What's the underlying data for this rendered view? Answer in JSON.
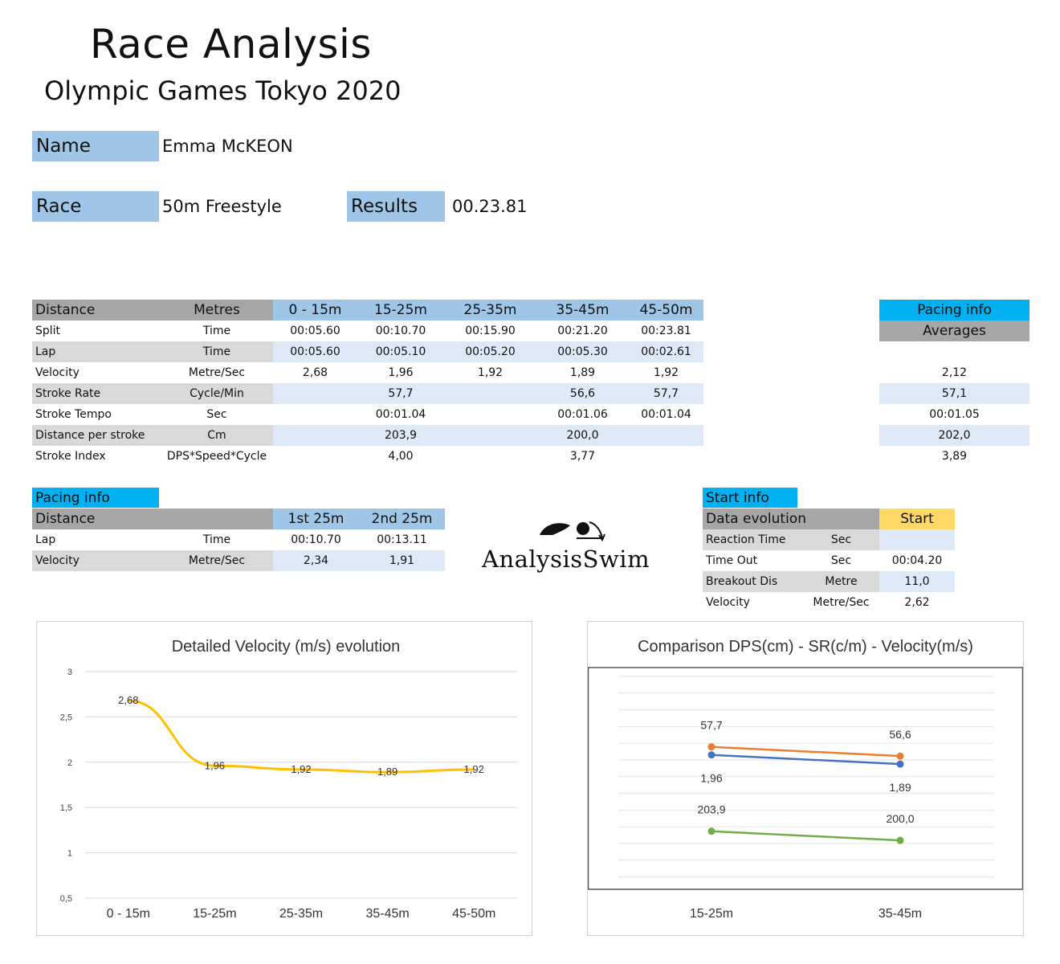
{
  "header": {
    "title": "Race Analysis",
    "subtitle": "Olympic Games Tokyo 2020"
  },
  "athlete": {
    "name_label": "Name",
    "name_value": "Emma McKEON",
    "race_label": "Race",
    "race_value": "50m Freestyle",
    "results_label": "Results",
    "results_value": "00.23.81"
  },
  "main_table": {
    "headers": [
      "Distance",
      "Metres",
      "0 - 15m",
      "15-25m",
      "25-35m",
      "35-45m",
      "45-50m"
    ],
    "rows": [
      {
        "label": "Split",
        "unit": "Time",
        "values": [
          "00:05.60",
          "00:10.70",
          "00:15.90",
          "00:21.20",
          "00:23.81"
        ]
      },
      {
        "label": "Lap",
        "unit": "Time",
        "values": [
          "00:05.60",
          "00:05.10",
          "00:05.20",
          "00:05.30",
          "00:02.61"
        ]
      },
      {
        "label": "Velocity",
        "unit": "Metre/Sec",
        "values": [
          "2,68",
          "1,96",
          "1,92",
          "1,89",
          "1,92"
        ]
      },
      {
        "label": "Stroke Rate",
        "unit": "Cycle/Min",
        "values": [
          "",
          "57,7",
          "",
          "56,6",
          "57,7"
        ]
      },
      {
        "label": "Stroke Tempo",
        "unit": "Sec",
        "values": [
          "",
          "00:01.04",
          "",
          "00:01.06",
          "00:01.04"
        ]
      },
      {
        "label": "Distance per stroke",
        "unit": "Cm",
        "values": [
          "",
          "203,9",
          "",
          "200,0",
          ""
        ]
      },
      {
        "label": "Stroke Index",
        "unit": "DPS*Speed*Cycle",
        "values": [
          "",
          "4,00",
          "",
          "3,77",
          ""
        ]
      }
    ]
  },
  "averages": {
    "title": "Pacing info",
    "subtitle": "Averages",
    "values": [
      "",
      "",
      "2,12",
      "57,1",
      "00:01.05",
      "202,0",
      "3,89"
    ]
  },
  "pacing": {
    "title": "Pacing info",
    "headers": [
      "Distance",
      "",
      "1st 25m",
      "2nd 25m"
    ],
    "rows": [
      {
        "label": "Lap",
        "unit": "Time",
        "values": [
          "00:10.70",
          "00:13.11"
        ]
      },
      {
        "label": "Velocity",
        "unit": "Metre/Sec",
        "values": [
          "2,34",
          "1,91"
        ]
      }
    ]
  },
  "logo": {
    "text": "AnalysisSwim"
  },
  "start_info": {
    "title": "Start info",
    "header_label": "Data evolution",
    "header_value": "Start",
    "rows": [
      {
        "label": "Reaction Time",
        "unit": "Sec",
        "value": ""
      },
      {
        "label": "Time Out",
        "unit": "Sec",
        "value": "00:04.20"
      },
      {
        "label": "Breakout Dis",
        "unit": "Metre",
        "value": "11,0"
      },
      {
        "label": "Velocity",
        "unit": "Metre/Sec",
        "value": "2,62"
      }
    ]
  },
  "colors": {
    "velocity_line": "#ffc000",
    "sr_line": "#ed7d31",
    "vel_line": "#4472c4",
    "dps_line": "#70ad47"
  },
  "chart_data": [
    {
      "type": "line",
      "title": "Detailed Velocity (m/s)  evolution",
      "categories": [
        "0 - 15m",
        "15-25m",
        "25-35m",
        "35-45m",
        "45-50m"
      ],
      "values": [
        2.68,
        1.96,
        1.92,
        1.89,
        1.92
      ],
      "data_labels": [
        "2,68",
        "1,96",
        "1,92",
        "1,89",
        "1,92"
      ],
      "yticks": [
        "0,5",
        "1",
        "1,5",
        "2",
        "2,5",
        "3"
      ],
      "ylim": [
        0.5,
        3
      ],
      "grid": true,
      "legend": "none"
    },
    {
      "type": "line",
      "title": "Comparison DPS(cm) - SR(c/m) - Velocity(m/s)",
      "categories": [
        "15-25m",
        "35-45m"
      ],
      "series": [
        {
          "values": [
            57.7,
            56.6
          ],
          "labels": [
            "57,7",
            "56,6"
          ]
        },
        {
          "values": [
            1.96,
            1.89
          ],
          "labels": [
            "1,96",
            "1,89"
          ]
        },
        {
          "values": [
            203.9,
            200.0
          ],
          "labels": [
            "203,9",
            "200,0"
          ]
        }
      ],
      "grid": true,
      "legend": "none"
    }
  ]
}
